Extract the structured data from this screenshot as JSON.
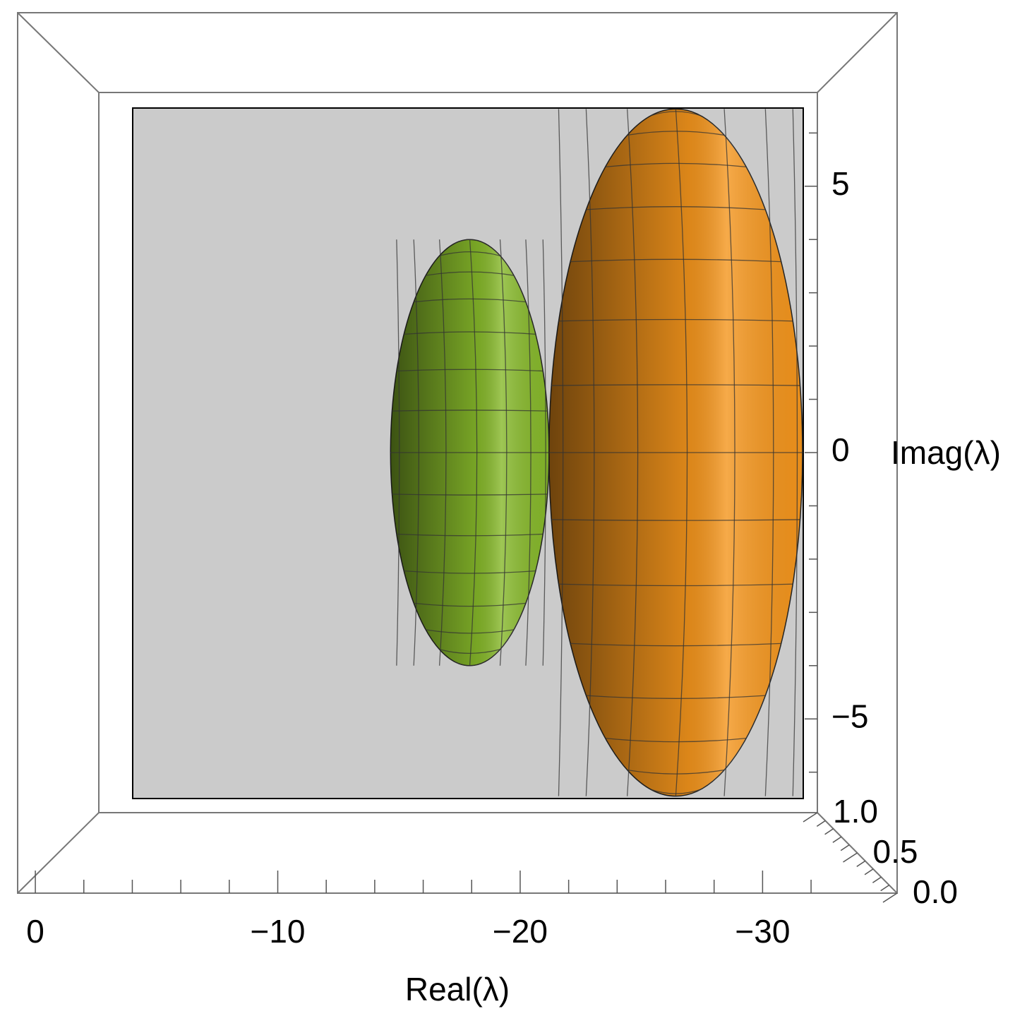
{
  "chart_data": {
    "type": "ellipsoid3d",
    "xlabel": "Real(λ)",
    "ylabel": "Imag(λ)",
    "xlim": [
      0.73,
      -35.55
    ],
    "xticks": [
      0,
      {
        "value": -10,
        "label": "−10"
      },
      {
        "value": -20,
        "label": "−20"
      },
      {
        "value": -30,
        "label": "−30"
      }
    ],
    "xminorticks": [
      -2,
      -4,
      -6,
      -8,
      -12,
      -14,
      -16,
      -18,
      -22,
      -24,
      -26,
      -28,
      -32
    ],
    "ylim": [
      -6.76,
      6.76
    ],
    "yticks": [
      {
        "value": -5,
        "label": "−5"
      },
      0,
      5
    ],
    "yminorticks": [
      -6,
      -4,
      -3,
      -2,
      -1,
      1,
      2,
      3,
      4,
      6
    ],
    "zlim": [
      0,
      1
    ],
    "zticks": [
      {
        "value": 0,
        "label": "0.0"
      },
      {
        "value": 0.5,
        "label": "0.5"
      },
      {
        "value": 1,
        "label": "1.0"
      }
    ],
    "zminorticks": [
      0.1,
      0.2,
      0.3,
      0.4,
      0.6,
      0.7,
      0.8,
      0.9
    ],
    "series": [
      {
        "color": "#86b82a",
        "center_real": -18,
        "center_imag": 0,
        "radius_real": 4,
        "radius_imag": 4
      },
      {
        "color": "#f4951c",
        "center_real": -28.4,
        "center_imag": 0,
        "radius_real": 6.4,
        "radius_imag": 6.45
      }
    ]
  }
}
